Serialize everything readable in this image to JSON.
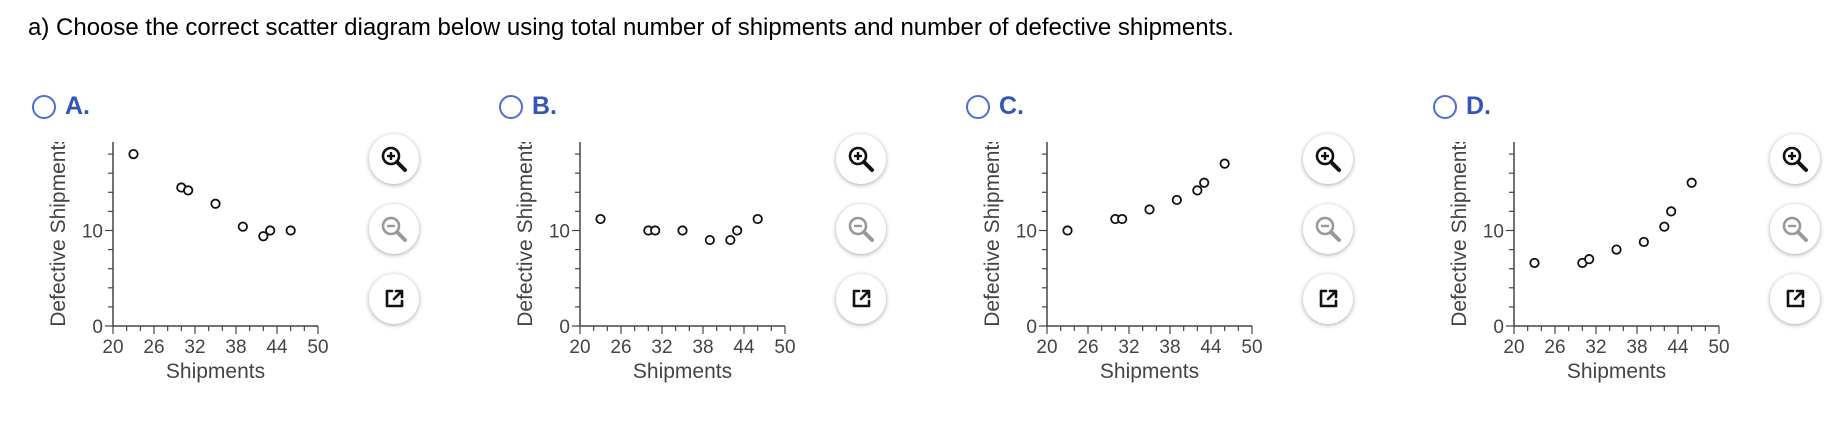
{
  "question": "a) Choose the correct scatter diagram below using total number of shipments and number of defective shipments.",
  "colors": {
    "accent": "#3355bb",
    "radio_border": "#4a6fd4",
    "axis": "#444444"
  },
  "tool_icons": [
    "zoom-in-icon",
    "zoom-out-icon",
    "popout-icon"
  ],
  "options": [
    {
      "label": "A."
    },
    {
      "label": "B."
    },
    {
      "label": "C."
    },
    {
      "label": "D."
    }
  ],
  "chart_data": [
    {
      "type": "scatter",
      "xlabel": "Shipments",
      "ylabel": "Defective Shipments",
      "xlim": [
        20,
        50
      ],
      "ylim": [
        0,
        20
      ],
      "xticks": [
        "20",
        "26",
        "32",
        "38",
        "44",
        "50"
      ],
      "yticks": [
        "0",
        "10",
        "20"
      ],
      "points": [
        [
          23,
          18
        ],
        [
          30,
          14.5
        ],
        [
          31,
          14.2
        ],
        [
          35,
          12.8
        ],
        [
          39,
          10.4
        ],
        [
          42,
          9.4
        ],
        [
          43,
          10
        ],
        [
          46,
          10
        ]
      ]
    },
    {
      "type": "scatter",
      "xlabel": "Shipments",
      "ylabel": "Defective Shipments",
      "xlim": [
        20,
        50
      ],
      "ylim": [
        0,
        20
      ],
      "xticks": [
        "20",
        "26",
        "32",
        "38",
        "44",
        "50"
      ],
      "yticks": [
        "0",
        "10",
        "20"
      ],
      "points": [
        [
          23,
          11.2
        ],
        [
          30,
          10
        ],
        [
          31,
          10
        ],
        [
          35,
          10
        ],
        [
          39,
          9
        ],
        [
          42,
          9
        ],
        [
          43,
          10
        ],
        [
          46,
          11.2
        ]
      ]
    },
    {
      "type": "scatter",
      "xlabel": "Shipments",
      "ylabel": "Defective Shipments",
      "xlim": [
        20,
        50
      ],
      "ylim": [
        0,
        20
      ],
      "xticks": [
        "20",
        "26",
        "32",
        "38",
        "44",
        "50"
      ],
      "yticks": [
        "0",
        "10",
        "20"
      ],
      "points": [
        [
          23,
          10
        ],
        [
          30,
          11.2
        ],
        [
          31,
          11.2
        ],
        [
          35,
          12.2
        ],
        [
          39,
          13.2
        ],
        [
          42,
          14.2
        ],
        [
          43,
          15
        ],
        [
          46,
          17
        ]
      ]
    },
    {
      "type": "scatter",
      "xlabel": "Shipments",
      "ylabel": "Defective Shipments",
      "xlim": [
        20,
        50
      ],
      "ylim": [
        0,
        20
      ],
      "xticks": [
        "20",
        "26",
        "32",
        "38",
        "44",
        "50"
      ],
      "yticks": [
        "0",
        "10",
        "20"
      ],
      "points": [
        [
          23,
          6.6
        ],
        [
          30,
          6.6
        ],
        [
          31,
          7
        ],
        [
          35,
          8
        ],
        [
          39,
          8.8
        ],
        [
          42,
          10.4
        ],
        [
          43,
          12
        ],
        [
          46,
          15
        ]
      ]
    }
  ]
}
